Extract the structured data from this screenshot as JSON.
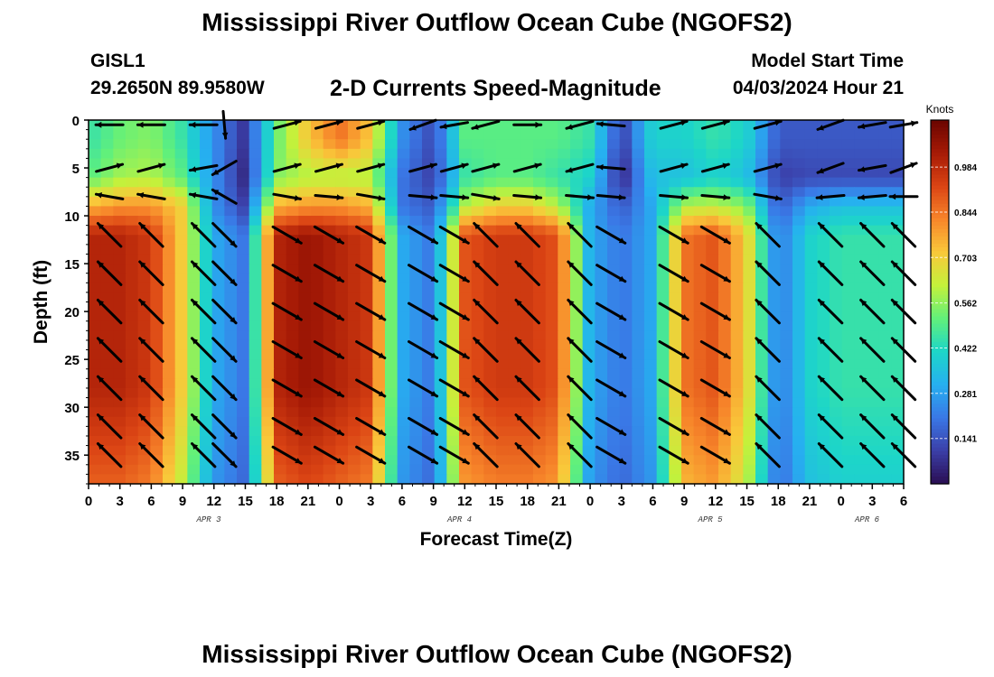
{
  "header": {
    "title": "Mississippi River Outflow Ocean Cube (NGOFS2)",
    "station_id": "GISL1",
    "station_coords": "29.2650N  89.9580W",
    "plot_title": "2-D Currents Speed-Magnitude",
    "model_start_label": "Model Start Time",
    "model_start_value": "04/03/2024 Hour 21"
  },
  "footer": {
    "title": "Mississippi River Outflow Ocean Cube (NGOFS2)"
  },
  "chart_data": {
    "type": "heatmap",
    "title": "2-D Currents Speed-Magnitude",
    "xlabel": "Forecast Time(Z)",
    "ylabel": "Depth (ft)",
    "xlim": [
      0,
      78
    ],
    "ylim": [
      0,
      38
    ],
    "x_tick_values": [
      0,
      3,
      6,
      9,
      12,
      15,
      18,
      21,
      24,
      27,
      30,
      33,
      36,
      39,
      42,
      45,
      48,
      51,
      54,
      57,
      60,
      63,
      66,
      69,
      72,
      75,
      78
    ],
    "x_tick_labels": [
      "0",
      "3",
      "6",
      "9",
      "12",
      "15",
      "18",
      "21",
      "0",
      "3",
      "6",
      "9",
      "12",
      "15",
      "18",
      "21",
      "0",
      "3",
      "6",
      "9",
      "12",
      "15",
      "18",
      "21",
      "0",
      "3",
      "6"
    ],
    "date_labels": [
      {
        "text": "APR 3",
        "x": 11.5
      },
      {
        "text": "APR 4",
        "x": 35.5
      },
      {
        "text": "APR 5",
        "x": 59.5
      },
      {
        "text": "APR 6",
        "x": 74.5
      }
    ],
    "y_ticks": [
      0,
      5,
      10,
      15,
      20,
      25,
      30,
      35
    ],
    "colorbar": {
      "label": "Knots",
      "range": [
        0,
        1.13
      ],
      "ticks": [
        0.141,
        0.281,
        0.422,
        0.562,
        0.703,
        0.844,
        0.984
      ],
      "tick_labels": [
        "0.141",
        "0.281",
        "0.422",
        "0.562",
        "0.703",
        "0.844",
        "0.984"
      ],
      "colors": [
        "#2a0e52",
        "#3b3fa8",
        "#3a78e6",
        "#26b0f0",
        "#1dd6c8",
        "#62f07a",
        "#c4f13b",
        "#f9c83a",
        "#f7852a",
        "#db4414",
        "#a61a06",
        "#6a0500"
      ]
    },
    "speed_field_knots": {
      "description": "Speed magnitude sampled at every 3 hours (columns) for depth bands 0-4, 4-8, 8-11, 11-38 ft (rows)",
      "time_hours": [
        0,
        3,
        6,
        9,
        12,
        15,
        18,
        21,
        24,
        27,
        30,
        33,
        36,
        39,
        42,
        45,
        48,
        51,
        54,
        57,
        60,
        63,
        66,
        69,
        72,
        75,
        78
      ],
      "surface_0_4": [
        0.45,
        0.52,
        0.55,
        0.45,
        0.25,
        0.08,
        0.52,
        0.72,
        0.85,
        0.72,
        0.25,
        0.12,
        0.5,
        0.5,
        0.5,
        0.5,
        0.45,
        0.1,
        0.4,
        0.4,
        0.45,
        0.4,
        0.15,
        0.15,
        0.15,
        0.15,
        0.15
      ],
      "mid_4_8": [
        0.5,
        0.58,
        0.6,
        0.5,
        0.25,
        0.05,
        0.55,
        0.6,
        0.6,
        0.6,
        0.2,
        0.1,
        0.45,
        0.5,
        0.5,
        0.45,
        0.4,
        0.05,
        0.35,
        0.35,
        0.4,
        0.35,
        0.1,
        0.12,
        0.12,
        0.12,
        0.12
      ],
      "upper_8_11": [
        0.75,
        0.8,
        0.8,
        0.7,
        0.25,
        0.1,
        0.75,
        0.8,
        0.8,
        0.75,
        0.2,
        0.15,
        0.6,
        0.7,
        0.7,
        0.6,
        0.3,
        0.15,
        0.3,
        0.6,
        0.62,
        0.55,
        0.15,
        0.3,
        0.35,
        0.35,
        0.35
      ],
      "lower_11_38": [
        1.0,
        1.0,
        0.95,
        0.7,
        0.3,
        0.2,
        1.0,
        1.05,
        1.0,
        0.95,
        0.3,
        0.2,
        0.9,
        0.95,
        0.95,
        0.9,
        0.3,
        0.2,
        0.3,
        0.85,
        0.9,
        0.7,
        0.2,
        0.4,
        0.45,
        0.45,
        0.45
      ]
    },
    "vector_field": {
      "description": "Current direction in degrees (0 = east / pointing right, 90 = north / pointing up) at sample times; arrows drawn at depths 0.5, 5, 8 (surface rows) and 12-35 (deep rows)",
      "times": [
        2,
        6,
        11,
        13,
        19,
        23,
        27,
        32,
        35,
        38,
        42,
        47,
        50,
        56,
        60,
        65,
        71,
        75,
        78
      ],
      "surface_dir": [
        180,
        180,
        160,
        270,
        15,
        15,
        15,
        200,
        190,
        195,
        0,
        195,
        175,
        175,
        0,
        0,
        190,
        190,
        180
      ],
      "surface_rows_depth": [
        0.5,
        5,
        8
      ],
      "upper_dir": [
        [
          180,
          180,
          180,
          275,
          15,
          15,
          15,
          200,
          190,
          195,
          0,
          195,
          175,
          15,
          15,
          15,
          200,
          190,
          10
        ],
        [
          15,
          15,
          190,
          210,
          15,
          15,
          15,
          15,
          15,
          15,
          15,
          195,
          175,
          15,
          15,
          15,
          200,
          190,
          20
        ],
        [
          170,
          170,
          170,
          150,
          350,
          355,
          350,
          355,
          355,
          350,
          355,
          355,
          355,
          355,
          355,
          350,
          185,
          185,
          180
        ]
      ],
      "deep_dir": [
        135,
        135,
        135,
        315,
        330,
        330,
        330,
        330,
        330,
        135,
        135,
        135,
        330,
        330,
        330,
        135,
        135,
        135,
        135
      ],
      "deep_rows_depth": [
        12,
        16,
        20,
        24,
        28,
        32,
        35
      ]
    }
  }
}
